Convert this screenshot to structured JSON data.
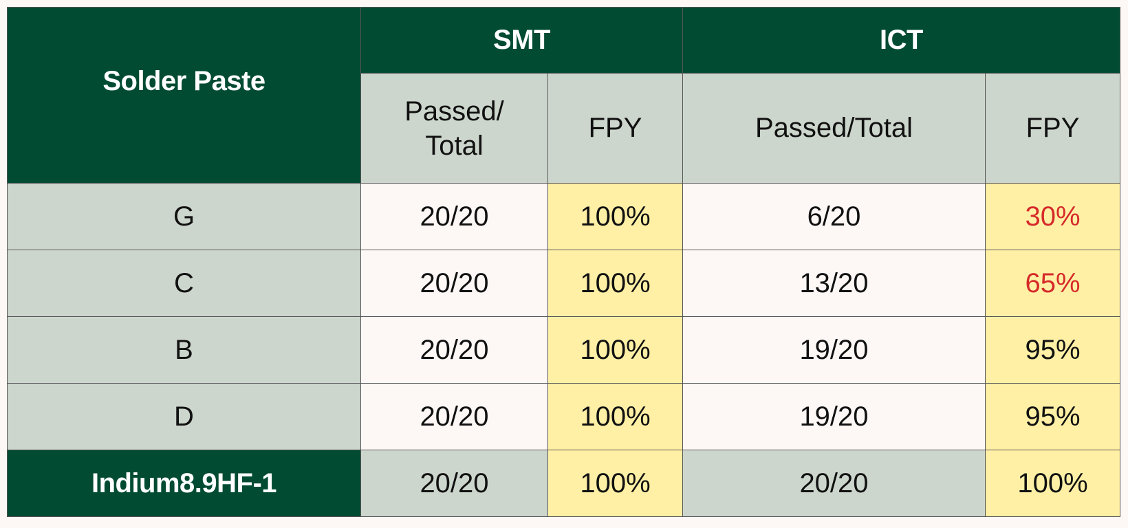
{
  "table": {
    "header": {
      "solder_paste": "Solder Paste",
      "smt": "SMT",
      "ict": "ICT",
      "smt_passed_total_line1": "Passed/",
      "smt_passed_total_line2": "Total",
      "smt_fpy": "FPY",
      "ict_passed_total": "Passed/Total",
      "ict_fpy": "FPY"
    },
    "rows": [
      {
        "paste": "G",
        "smt_passed": "20/20",
        "smt_fpy": "100%",
        "ict_passed": "6/20",
        "ict_fpy": "30%"
      },
      {
        "paste": "C",
        "smt_passed": "20/20",
        "smt_fpy": "100%",
        "ict_passed": "13/20",
        "ict_fpy": "65%"
      },
      {
        "paste": "B",
        "smt_passed": "20/20",
        "smt_fpy": "100%",
        "ict_passed": "19/20",
        "ict_fpy": "95%"
      },
      {
        "paste": "D",
        "smt_passed": "20/20",
        "smt_fpy": "100%",
        "ict_passed": "19/20",
        "ict_fpy": "95%"
      },
      {
        "paste": "Indium8.9HF-1",
        "smt_passed": "20/20",
        "smt_fpy": "100%",
        "ict_passed": "20/20",
        "ict_fpy": "100%"
      }
    ],
    "colors": {
      "header_dark_green": "#004b32",
      "header_gray": "#cdd6cd",
      "cell_cream": "#fdf8f6",
      "fpy_yellow": "#fff0a6",
      "low_fpy_red": "#d62a2a"
    }
  }
}
